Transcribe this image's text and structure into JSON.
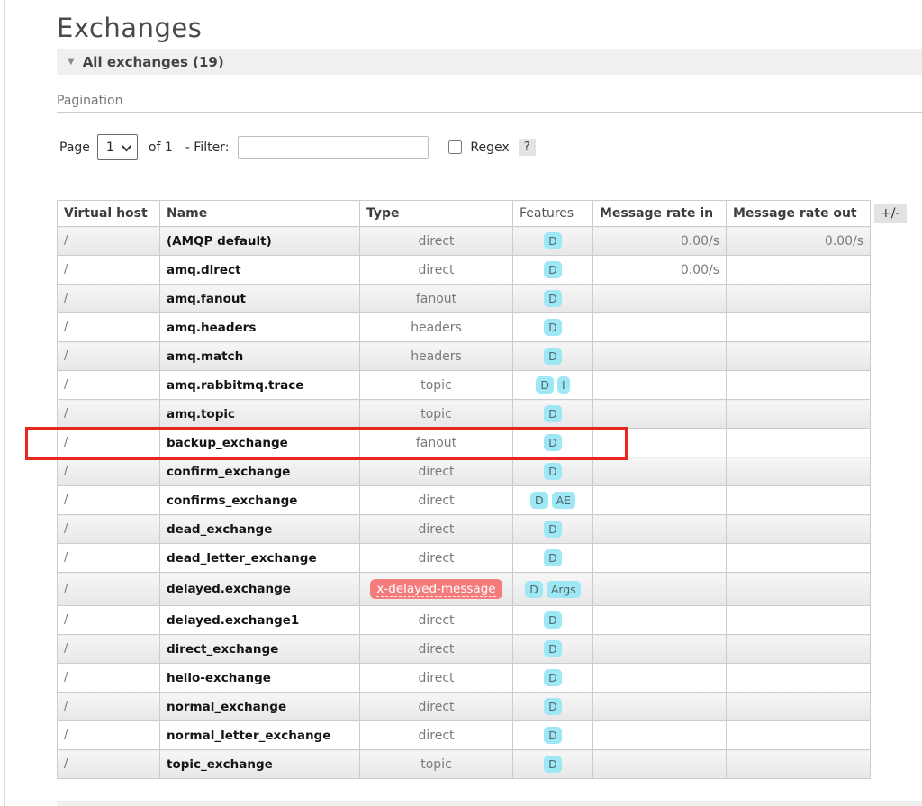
{
  "page": {
    "title": "Exchanges",
    "section_header": "All exchanges (19)",
    "pagination_label": "Pagination",
    "controls": {
      "page_label": "Page",
      "page_value": "1",
      "of_label": "of 1",
      "filter_label": "- Filter:",
      "filter_value": "",
      "regex_label": "Regex",
      "help_badge": "?"
    },
    "columns_toggle": "+/-"
  },
  "colors": {
    "feature_badge_bg": "#9ee7f5",
    "type_badge_bg": "#f47c7c",
    "annotation_red": "#e8261d",
    "section_bar_bg": "#f0f0f0"
  },
  "table": {
    "headers": [
      "Virtual host",
      "Name",
      "Type",
      "Features",
      "Message rate in",
      "Message rate out"
    ],
    "rows": [
      {
        "vhost": "/",
        "name": "(AMQP default)",
        "type": "direct",
        "type_badge": false,
        "features": [
          "D"
        ],
        "rate_in": "0.00/s",
        "rate_out": "0.00/s"
      },
      {
        "vhost": "/",
        "name": "amq.direct",
        "type": "direct",
        "type_badge": false,
        "features": [
          "D"
        ],
        "rate_in": "0.00/s",
        "rate_out": ""
      },
      {
        "vhost": "/",
        "name": "amq.fanout",
        "type": "fanout",
        "type_badge": false,
        "features": [
          "D"
        ],
        "rate_in": "",
        "rate_out": ""
      },
      {
        "vhost": "/",
        "name": "amq.headers",
        "type": "headers",
        "type_badge": false,
        "features": [
          "D"
        ],
        "rate_in": "",
        "rate_out": ""
      },
      {
        "vhost": "/",
        "name": "amq.match",
        "type": "headers",
        "type_badge": false,
        "features": [
          "D"
        ],
        "rate_in": "",
        "rate_out": ""
      },
      {
        "vhost": "/",
        "name": "amq.rabbitmq.trace",
        "type": "topic",
        "type_badge": false,
        "features": [
          "D",
          "I"
        ],
        "rate_in": "",
        "rate_out": ""
      },
      {
        "vhost": "/",
        "name": "amq.topic",
        "type": "topic",
        "type_badge": false,
        "features": [
          "D"
        ],
        "rate_in": "",
        "rate_out": ""
      },
      {
        "vhost": "/",
        "name": "backup_exchange",
        "type": "fanout",
        "type_badge": false,
        "features": [
          "D"
        ],
        "rate_in": "",
        "rate_out": "",
        "highlighted": true
      },
      {
        "vhost": "/",
        "name": "confirm_exchange",
        "type": "direct",
        "type_badge": false,
        "features": [
          "D"
        ],
        "rate_in": "",
        "rate_out": ""
      },
      {
        "vhost": "/",
        "name": "confirms_exchange",
        "type": "direct",
        "type_badge": false,
        "features": [
          "D",
          "AE"
        ],
        "rate_in": "",
        "rate_out": ""
      },
      {
        "vhost": "/",
        "name": "dead_exchange",
        "type": "direct",
        "type_badge": false,
        "features": [
          "D"
        ],
        "rate_in": "",
        "rate_out": ""
      },
      {
        "vhost": "/",
        "name": "dead_letter_exchange",
        "type": "direct",
        "type_badge": false,
        "features": [
          "D"
        ],
        "rate_in": "",
        "rate_out": ""
      },
      {
        "vhost": "/",
        "name": "delayed.exchange",
        "type": "x-delayed-message",
        "type_badge": true,
        "features": [
          "D",
          "Args"
        ],
        "rate_in": "",
        "rate_out": "",
        "tall": true
      },
      {
        "vhost": "/",
        "name": "delayed.exchange1",
        "type": "direct",
        "type_badge": false,
        "features": [
          "D"
        ],
        "rate_in": "",
        "rate_out": ""
      },
      {
        "vhost": "/",
        "name": "direct_exchange",
        "type": "direct",
        "type_badge": false,
        "features": [
          "D"
        ],
        "rate_in": "",
        "rate_out": ""
      },
      {
        "vhost": "/",
        "name": "hello-exchange",
        "type": "direct",
        "type_badge": false,
        "features": [
          "D"
        ],
        "rate_in": "",
        "rate_out": ""
      },
      {
        "vhost": "/",
        "name": "normal_exchange",
        "type": "direct",
        "type_badge": false,
        "features": [
          "D"
        ],
        "rate_in": "",
        "rate_out": ""
      },
      {
        "vhost": "/",
        "name": "normal_letter_exchange",
        "type": "direct",
        "type_badge": false,
        "features": [
          "D"
        ],
        "rate_in": "",
        "rate_out": ""
      },
      {
        "vhost": "/",
        "name": "topic_exchange",
        "type": "topic",
        "type_badge": false,
        "features": [
          "D"
        ],
        "rate_in": "",
        "rate_out": ""
      }
    ]
  }
}
